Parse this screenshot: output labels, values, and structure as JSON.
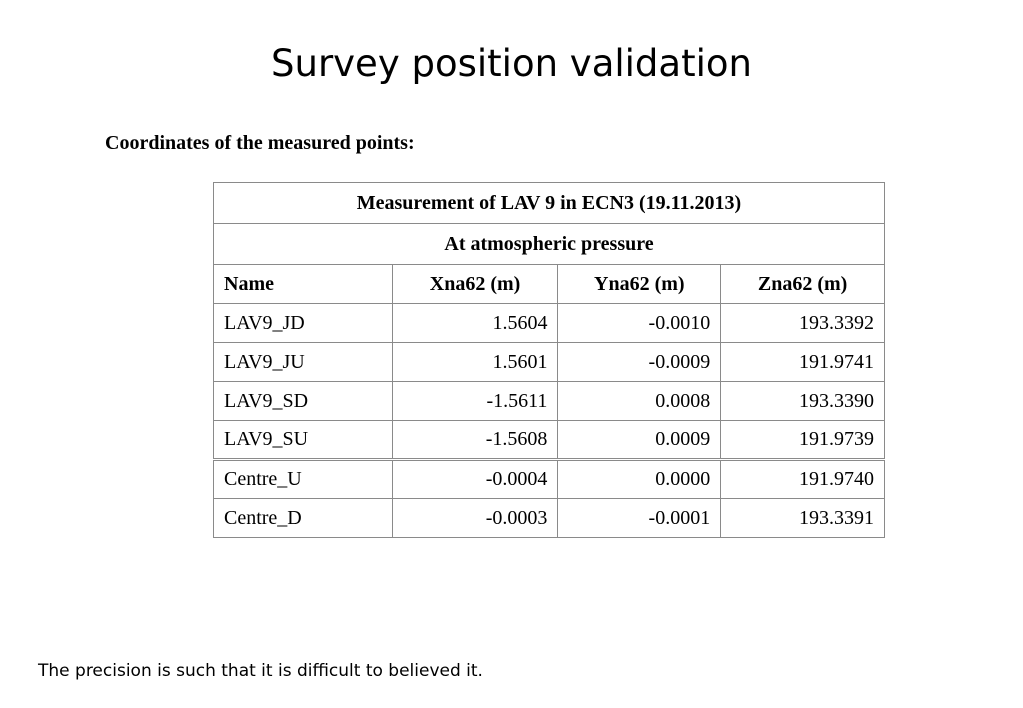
{
  "slide": {
    "title": "Survey position validation",
    "section_heading": "Coordinates of the measured points:",
    "footnote": "The precision is such that it is difficult to believed it."
  },
  "table": {
    "caption": "Measurement of LAV 9 in ECN3 (19.11.2013)",
    "subcaption": "At atmospheric pressure",
    "headers": [
      "Name",
      "Xna62 (m)",
      "Yna62 (m)",
      "Zna62 (m)"
    ],
    "rows": [
      [
        "LAV9_JD",
        "1.5604",
        "-0.0010",
        "193.3392"
      ],
      [
        "LAV9_JU",
        "1.5601",
        "-0.0009",
        "191.9741"
      ],
      [
        "LAV9_SD",
        "-1.5611",
        "0.0008",
        "193.3390"
      ],
      [
        "LAV9_SU",
        "-1.5608",
        "0.0009",
        "191.9739"
      ],
      [
        "Centre_U",
        "-0.0004",
        "0.0000",
        "191.9740"
      ],
      [
        "Centre_D",
        "-0.0003",
        "-0.0001",
        "193.3391"
      ]
    ]
  }
}
